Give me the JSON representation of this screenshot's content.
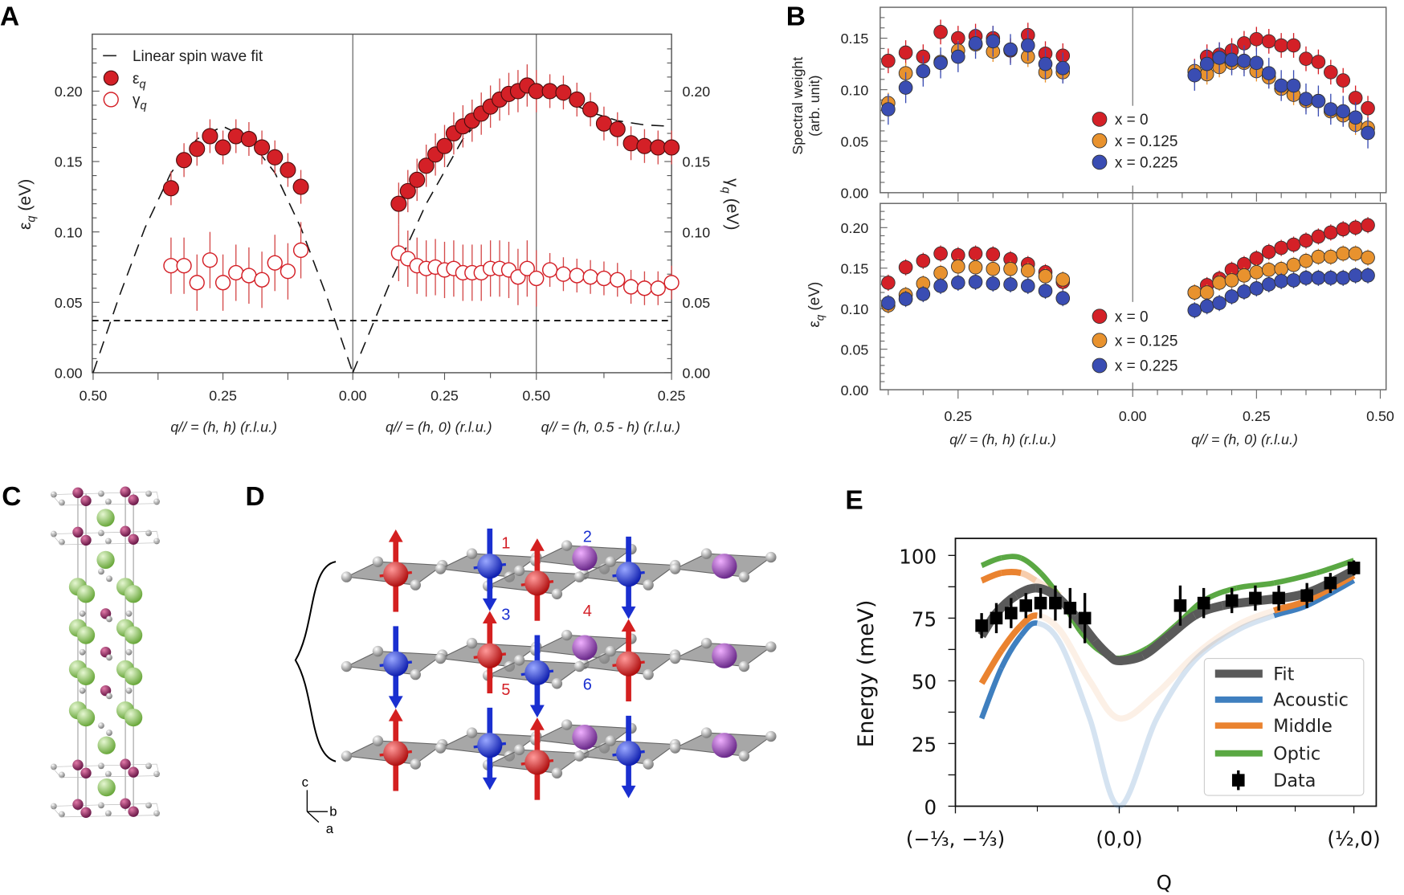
{
  "panels": {
    "a": "A",
    "b": "B",
    "c": "C",
    "d": "D",
    "e": "E"
  },
  "colors": {
    "x0": "#d42027",
    "x0125": "#e8922e",
    "x0225": "#3a4db3",
    "fit_gray": "#5a5a5a",
    "acoustic": "#3f7fbf",
    "middle": "#ea8330",
    "optic": "#5aa843",
    "purple": "#8a3a9a",
    "green_atom": "#8cc660",
    "ni_purple": "#8a2a5a"
  },
  "chart_data": [
    {
      "panel": "A",
      "type": "scatter",
      "ylabel": {
        "symbol": "ε",
        "sub": "q",
        "unit": " (eV)"
      },
      "y2label": {
        "symbol": "γ",
        "sub": "q",
        "unit": " (eV)"
      },
      "ylim": [
        0,
        0.24
      ],
      "yticks": [
        "0.00",
        "0.05",
        "0.10",
        "0.15",
        "0.20"
      ],
      "threshold": 0.037,
      "legend": {
        "fit": "Linear spin wave fit",
        "eps": "ε",
        "eps_sub": "q",
        "gamma": "γ",
        "gamma_sub": "q"
      },
      "segments": [
        {
          "xlabel": "q// = (h, h) (r.l.u.)",
          "tick_labels": [
            "0.50",
            "0.25",
            "0.00"
          ],
          "tick_values": [
            0.5,
            0.25,
            0.0
          ],
          "h": [
            0.35,
            0.325,
            0.3,
            0.275,
            0.25,
            0.225,
            0.2,
            0.175,
            0.15,
            0.125,
            0.1
          ],
          "eps": [
            0.131,
            0.151,
            0.159,
            0.168,
            0.16,
            0.168,
            0.166,
            0.16,
            0.153,
            0.144,
            0.132
          ],
          "eps_err": 0.012,
          "gamma": [
            0.076,
            0.076,
            0.064,
            0.08,
            0.064,
            0.071,
            0.069,
            0.066,
            0.078,
            0.072,
            0.087
          ],
          "gamma_err": 0.02,
          "fit_h": [
            0.5,
            0.45,
            0.4,
            0.35,
            0.3,
            0.25,
            0.2,
            0.15,
            0.1,
            0.05,
            0.0
          ],
          "fit": [
            0.0,
            0.054,
            0.103,
            0.142,
            0.166,
            0.175,
            0.166,
            0.142,
            0.103,
            0.054,
            0.0
          ]
        },
        {
          "xlabel": "q// = (h, 0) (r.l.u.)",
          "tick_labels": [
            "0.00",
            "0.25",
            "0.50"
          ],
          "tick_values": [
            0.0,
            0.25,
            0.5
          ],
          "h": [
            0.125,
            0.15,
            0.175,
            0.2,
            0.225,
            0.25,
            0.275,
            0.3,
            0.325,
            0.35,
            0.375,
            0.4,
            0.425,
            0.45,
            0.475,
            0.5
          ],
          "eps": [
            0.12,
            0.129,
            0.137,
            0.147,
            0.155,
            0.161,
            0.17,
            0.175,
            0.179,
            0.184,
            0.189,
            0.194,
            0.198,
            0.2,
            0.204,
            0.2
          ],
          "eps_err": 0.015,
          "gamma": [
            0.085,
            0.081,
            0.076,
            0.074,
            0.075,
            0.073,
            0.074,
            0.071,
            0.071,
            0.071,
            0.074,
            0.074,
            0.073,
            0.068,
            0.074,
            0.067
          ],
          "gamma_err": 0.02,
          "fit_h": [
            0.0,
            0.1,
            0.2,
            0.3,
            0.4,
            0.5
          ],
          "fit": [
            0.0,
            0.063,
            0.12,
            0.166,
            0.195,
            0.205
          ]
        },
        {
          "xlabel": "q// = (h, 0.5 - h) (r.l.u.)",
          "tick_labels": [
            "0.50",
            "0.25"
          ],
          "tick_values": [
            0.5,
            0.25
          ],
          "h": [
            0.475,
            0.45,
            0.425,
            0.4,
            0.375,
            0.35,
            0.325,
            0.3,
            0.275,
            0.25
          ],
          "eps": [
            0.2,
            0.199,
            0.194,
            0.187,
            0.177,
            0.173,
            0.163,
            0.161,
            0.16,
            0.16
          ],
          "eps_err": 0.012,
          "gamma": [
            0.073,
            0.07,
            0.069,
            0.068,
            0.067,
            0.066,
            0.061,
            0.06,
            0.06,
            0.064
          ],
          "gamma_err": 0.012,
          "fit_h": [
            0.5,
            0.45,
            0.4,
            0.35,
            0.3,
            0.25
          ],
          "fit": [
            0.205,
            0.194,
            0.185,
            0.179,
            0.176,
            0.175
          ]
        }
      ]
    },
    {
      "panel": "B",
      "type": "scatter",
      "x_segments": [
        {
          "xlabel": "q// = (h, h) (r.l.u.)",
          "tick_labels": [
            "0.25",
            "0.00"
          ],
          "tick_values": [
            0.25,
            0.0
          ]
        },
        {
          "xlabel": "q// = (h, 0) (r.l.u.)",
          "tick_labels": [
            "0.25",
            "0.50"
          ],
          "tick_values": [
            0.25,
            0.5
          ]
        }
      ],
      "legend": [
        "x = 0",
        "x = 0.125",
        "x = 0.225"
      ],
      "h_hh": [
        0.35,
        0.325,
        0.3,
        0.275,
        0.25,
        0.225,
        0.2,
        0.175,
        0.15,
        0.125,
        0.1
      ],
      "h_h0": [
        0.125,
        0.15,
        0.175,
        0.2,
        0.225,
        0.25,
        0.275,
        0.3,
        0.325,
        0.35,
        0.375,
        0.4,
        0.425,
        0.45,
        0.475
      ],
      "subplots": [
        {
          "ylabel": [
            "Spectral weight",
            "(arb. unit)"
          ],
          "ylim": [
            0,
            0.18
          ],
          "yticks": [
            "0.00",
            "0.05",
            "0.10",
            "0.15"
          ],
          "series": [
            {
              "name": "x = 0",
              "hh": [
                0.128,
                0.136,
                0.132,
                0.156,
                0.15,
                0.152,
                0.15,
                0.138,
                0.153,
                0.135,
                0.133
              ],
              "h0": [
                0.118,
                0.132,
                0.134,
                0.138,
                0.145,
                0.149,
                0.147,
                0.143,
                0.143,
                0.13,
                0.127,
                0.117,
                0.109,
                0.092,
                0.082
              ],
              "err": 0.012
            },
            {
              "name": "x = 0.125",
              "hh": [
                0.087,
                0.116,
                0.118,
                0.127,
                0.138,
                0.144,
                0.137,
                0.139,
                0.132,
                0.117,
                0.117
              ],
              "h0": [
                0.118,
                0.115,
                0.122,
                0.126,
                0.126,
                0.118,
                0.112,
                0.101,
                0.095,
                0.089,
                0.089,
                0.079,
                0.075,
                0.066,
                0.063
              ],
              "err": 0.01
            },
            {
              "name": "x = 0.225",
              "hh": [
                0.081,
                0.102,
                0.118,
                0.126,
                0.132,
                0.145,
                0.147,
                0.139,
                0.143,
                0.125,
                0.121
              ],
              "h0": [
                0.114,
                0.125,
                0.131,
                0.129,
                0.128,
                0.126,
                0.116,
                0.104,
                0.104,
                0.091,
                0.089,
                0.081,
                0.079,
                0.073,
                0.058
              ],
              "err": 0.015
            }
          ]
        },
        {
          "ylabel": {
            "symbol": "ε",
            "sub": "q",
            "unit": " (eV)"
          },
          "ylim": [
            0,
            0.225
          ],
          "yticks": [
            "0.00",
            "0.05",
            "0.10",
            "0.15",
            "0.20"
          ],
          "series": [
            {
              "name": "x = 0",
              "hh": [
                0.132,
                0.151,
                0.159,
                0.168,
                0.166,
                0.168,
                0.167,
                0.161,
                0.155,
                0.145,
                0.133
              ],
              "h0": [
                0.12,
                0.129,
                0.137,
                0.148,
                0.155,
                0.162,
                0.17,
                0.175,
                0.179,
                0.184,
                0.189,
                0.194,
                0.198,
                0.2,
                0.203
              ],
              "err": 0.01
            },
            {
              "name": "x = 0.125",
              "hh": [
                0.104,
                0.117,
                0.131,
                0.144,
                0.152,
                0.151,
                0.149,
                0.149,
                0.147,
                0.14,
                0.136
              ],
              "h0": [
                0.12,
                0.12,
                0.132,
                0.135,
                0.141,
                0.145,
                0.148,
                0.149,
                0.154,
                0.159,
                0.164,
                0.164,
                0.168,
                0.168,
                0.163
              ],
              "err": 0.01
            },
            {
              "name": "x = 0.225",
              "hh": [
                0.107,
                0.112,
                0.118,
                0.128,
                0.132,
                0.133,
                0.131,
                0.13,
                0.128,
                0.122,
                0.113
              ],
              "h0": [
                0.098,
                0.103,
                0.107,
                0.115,
                0.121,
                0.125,
                0.13,
                0.134,
                0.135,
                0.138,
                0.138,
                0.138,
                0.138,
                0.141,
                0.141
              ],
              "err": 0.01
            }
          ]
        }
      ]
    },
    {
      "panel": "E",
      "type": "line",
      "ylabel": "Energy (meV)",
      "xlabel": "Q",
      "ylim": [
        0,
        107
      ],
      "yticks": [
        "0",
        "25",
        "50",
        "75",
        "100"
      ],
      "xticks": [
        "(−⅓, −⅓)",
        "(0,0)",
        "(½,0)"
      ],
      "legend": [
        "Fit",
        "Acoustic",
        "Middle",
        "Optic",
        "Data"
      ],
      "curves": [
        {
          "name": "Optic",
          "color_key": "optic",
          "points": [
            [
              -0.28,
              96
            ],
            [
              -0.24,
              99
            ],
            [
              -0.2,
              99
            ],
            [
              -0.16,
              93
            ],
            [
              -0.12,
              83
            ],
            [
              -0.08,
              70
            ],
            [
              -0.04,
              62
            ],
            [
              0,
              59
            ],
            [
              0.06,
              63
            ],
            [
              0.12,
              72
            ],
            [
              0.18,
              82
            ],
            [
              0.25,
              87
            ],
            [
              0.33,
              89
            ],
            [
              0.42,
              93
            ],
            [
              0.5,
              98
            ]
          ],
          "alpha": [
            1,
            1,
            1,
            1,
            1,
            1,
            1,
            1,
            1,
            1,
            1,
            1,
            1,
            1,
            1
          ]
        },
        {
          "name": "Acoustic",
          "color_key": "acoustic",
          "points": [
            [
              -0.28,
              35
            ],
            [
              -0.24,
              55
            ],
            [
              -0.2,
              68
            ],
            [
              -0.167,
              73
            ],
            [
              -0.12,
              65
            ],
            [
              -0.06,
              35
            ],
            [
              0,
              0
            ],
            [
              0.08,
              35
            ],
            [
              0.16,
              58
            ],
            [
              0.25,
              70
            ],
            [
              0.33,
              76
            ],
            [
              0.4,
              80
            ],
            [
              0.5,
              90
            ]
          ],
          "alpha": [
            1,
            1,
            1,
            0.22,
            0.22,
            0.22,
            0.22,
            0.22,
            0.22,
            0.22,
            1,
            1,
            1
          ]
        },
        {
          "name": "Middle",
          "color_key": "middle",
          "points": [
            [
              -0.28,
              49
            ],
            [
              -0.24,
              62
            ],
            [
              -0.2,
              72
            ],
            [
              -0.167,
              76
            ],
            [
              -0.12,
              70
            ],
            [
              -0.06,
              50
            ],
            [
              0,
              35
            ],
            [
              0.08,
              45
            ],
            [
              0.16,
              60
            ],
            [
              0.25,
              72
            ],
            [
              0.33,
              78
            ],
            [
              0.4,
              82
            ],
            [
              0.5,
              92
            ]
          ],
          "alpha": [
            1,
            1,
            1,
            0.12,
            0.12,
            0.12,
            0.12,
            0.12,
            0.12,
            0.12,
            1,
            1,
            1
          ]
        },
        {
          "name": "Middle",
          "color_key": "middle",
          "points": [
            [
              -0.28,
              90
            ],
            [
              -0.24,
              93
            ],
            [
              -0.2,
              93
            ],
            [
              -0.17,
              90
            ],
            [
              -0.12,
              84
            ]
          ],
          "alpha": [
            1,
            1,
            0.4,
            0.2,
            0.2
          ]
        },
        {
          "name": "Fit",
          "color_key": "fit_gray",
          "points": [
            [
              -0.28,
              68
            ],
            [
              -0.25,
              77
            ],
            [
              -0.21,
              84
            ],
            [
              -0.17,
              87
            ],
            [
              -0.13,
              84
            ],
            [
              -0.09,
              76
            ],
            [
              -0.05,
              66
            ],
            [
              -0.02,
              60
            ],
            [
              0,
              58
            ],
            [
              0.05,
              60
            ],
            [
              0.1,
              67
            ],
            [
              0.16,
              76
            ],
            [
              0.22,
              80
            ],
            [
              0.3,
              82
            ],
            [
              0.4,
              85
            ],
            [
              0.5,
              94
            ]
          ],
          "alpha": [
            1,
            1,
            1,
            1,
            1,
            1,
            1,
            1,
            1,
            1,
            1,
            1,
            1,
            1,
            1,
            1
          ]
        }
      ],
      "data": {
        "name": "Data",
        "h": [
          -0.28,
          -0.25,
          -0.22,
          -0.19,
          -0.16,
          -0.13,
          -0.1,
          -0.07,
          0.13,
          0.18,
          0.24,
          0.29,
          0.34,
          0.4,
          0.45,
          0.5
        ],
        "E": [
          72,
          75,
          77,
          80,
          81,
          81,
          79,
          75,
          80,
          81,
          82,
          83,
          83,
          84,
          89,
          95
        ],
        "err": [
          5,
          6,
          6,
          5,
          6,
          7,
          8,
          10,
          8,
          6,
          5,
          5,
          5,
          5,
          4,
          3
        ]
      }
    }
  ],
  "structure_d": {
    "site_labels": [
      {
        "text": "1",
        "color": "#d42027"
      },
      {
        "text": "2",
        "color": "#1a2fd0"
      },
      {
        "text": "3",
        "color": "#1a2fd0"
      },
      {
        "text": "4",
        "color": "#d42027"
      },
      {
        "text": "5",
        "color": "#d42027"
      },
      {
        "text": "6",
        "color": "#1a2fd0"
      }
    ],
    "axes": {
      "c": "c",
      "b": "b",
      "a": "a"
    }
  }
}
